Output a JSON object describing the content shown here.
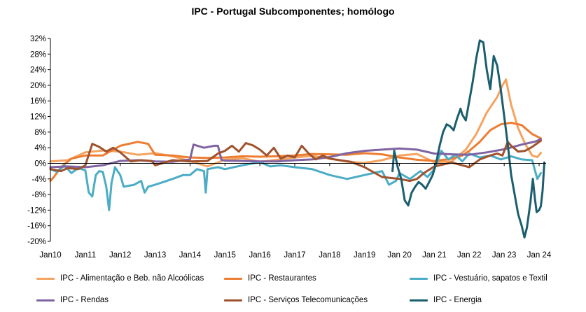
{
  "chart_data": {
    "type": "line",
    "title": "IPC - Portugal Subcomponentes; homólogo",
    "xlabel": "",
    "ylabel": "",
    "ylim": [
      -20,
      32
    ],
    "yticks": [
      "32%",
      "28%",
      "24%",
      "20%",
      "16%",
      "12%",
      "8%",
      "4%",
      "0%",
      "-4%",
      "-8%",
      "-12%",
      "-16%",
      "-20%"
    ],
    "xticks": [
      "Jan10",
      "Jan11",
      "Jan12",
      "Jan13",
      "Jan14",
      "Jan15",
      "Jan16",
      "Jan17",
      "Jan18",
      "Jan19",
      "Jan 20",
      "Jan 21",
      "Jan 22",
      "Jan 23",
      "Jan 24"
    ],
    "grid": false,
    "legend_position": "bottom",
    "series": [
      {
        "name": "IPC - Alimentação e Beb. não Alcoólicas",
        "color": "#F4A460",
        "points": [
          [
            2010,
            0.5
          ],
          [
            2010.5,
            0.8
          ],
          [
            2011,
            2.8
          ],
          [
            2011.5,
            3.3
          ],
          [
            2012,
            3.0
          ],
          [
            2012.5,
            2.2
          ],
          [
            2013,
            2.6
          ],
          [
            2013.5,
            1.8
          ],
          [
            2014,
            0.6
          ],
          [
            2014.5,
            -0.8
          ],
          [
            2015,
            0.9
          ],
          [
            2015.5,
            1.3
          ],
          [
            2016,
            0.4
          ],
          [
            2016.5,
            0.9
          ],
          [
            2017,
            1.5
          ],
          [
            2017.5,
            1.9
          ],
          [
            2018,
            1.2
          ],
          [
            2018.5,
            0.4
          ],
          [
            2019,
            0.1
          ],
          [
            2019.5,
            0.8
          ],
          [
            2020,
            2.0
          ],
          [
            2020.5,
            2.4
          ],
          [
            2021,
            0.3
          ],
          [
            2021.5,
            0.5
          ],
          [
            2021.9,
            3.5
          ],
          [
            2022.2,
            7.5
          ],
          [
            2022.5,
            13.0
          ],
          [
            2022.8,
            17.0
          ],
          [
            2022.95,
            20.0
          ],
          [
            2023.05,
            21.5
          ],
          [
            2023.2,
            15.0
          ],
          [
            2023.4,
            9.0
          ],
          [
            2023.6,
            5.0
          ],
          [
            2023.8,
            2.0
          ],
          [
            2023.95,
            1.6
          ],
          [
            2024.05,
            2.7
          ]
        ]
      },
      {
        "name": "IPC - Restaurantes",
        "color": "#ED7D31",
        "points": [
          [
            2010,
            -4.5
          ],
          [
            2010.1,
            -3.5
          ],
          [
            2010.3,
            -1.0
          ],
          [
            2010.6,
            1.2
          ],
          [
            2011,
            2.0
          ],
          [
            2011.5,
            2.0
          ],
          [
            2012,
            4.5
          ],
          [
            2012.5,
            5.5
          ],
          [
            2012.8,
            5.0
          ],
          [
            2013,
            2.2
          ],
          [
            2013.5,
            2.0
          ],
          [
            2014,
            1.5
          ],
          [
            2014.5,
            1.4
          ],
          [
            2015,
            1.5
          ],
          [
            2015.5,
            1.8
          ],
          [
            2016,
            1.7
          ],
          [
            2016.5,
            1.8
          ],
          [
            2017,
            2.0
          ],
          [
            2017.5,
            2.4
          ],
          [
            2018,
            2.3
          ],
          [
            2018.5,
            2.2
          ],
          [
            2019,
            2.6
          ],
          [
            2019.5,
            2.3
          ],
          [
            2020,
            1.5
          ],
          [
            2020.5,
            0.9
          ],
          [
            2021,
            0.6
          ],
          [
            2021.5,
            1.2
          ],
          [
            2021.8,
            2.0
          ],
          [
            2022,
            3.2
          ],
          [
            2022.3,
            5.5
          ],
          [
            2022.6,
            8.5
          ],
          [
            2022.9,
            10.0
          ],
          [
            2023.2,
            10.4
          ],
          [
            2023.5,
            9.8
          ],
          [
            2023.8,
            7.5
          ],
          [
            2024.05,
            6.4
          ]
        ]
      },
      {
        "name": "IPC - Vestuário, sapatos e Textil",
        "color": "#4BACC6",
        "points": [
          [
            2010,
            -1.5
          ],
          [
            2010.2,
            -2.2
          ],
          [
            2010.4,
            -0.5
          ],
          [
            2010.6,
            -2.5
          ],
          [
            2010.8,
            -1.2
          ],
          [
            2011,
            -1.8
          ],
          [
            2011.1,
            -7.5
          ],
          [
            2011.2,
            -8.5
          ],
          [
            2011.3,
            -3.0
          ],
          [
            2011.4,
            -2.0
          ],
          [
            2011.5,
            -2.2
          ],
          [
            2011.6,
            -6.0
          ],
          [
            2011.68,
            -12.0
          ],
          [
            2011.75,
            -5.0
          ],
          [
            2011.85,
            -1.0
          ],
          [
            2012,
            -3.0
          ],
          [
            2012.1,
            -6.0
          ],
          [
            2012.4,
            -5.5
          ],
          [
            2012.6,
            -4.5
          ],
          [
            2012.7,
            -7.5
          ],
          [
            2012.8,
            -6.0
          ],
          [
            2013,
            -5.5
          ],
          [
            2013.5,
            -4.0
          ],
          [
            2013.8,
            -3.0
          ],
          [
            2014,
            -3.0
          ],
          [
            2014.2,
            -1.5
          ],
          [
            2014.4,
            -2.0
          ],
          [
            2014.45,
            -7.5
          ],
          [
            2014.5,
            -1.5
          ],
          [
            2014.8,
            -1.0
          ],
          [
            2015,
            -1.5
          ],
          [
            2015.5,
            -0.5
          ],
          [
            2016,
            0.3
          ],
          [
            2016.3,
            -0.8
          ],
          [
            2016.6,
            -0.5
          ],
          [
            2017,
            -1.0
          ],
          [
            2017.5,
            -1.5
          ],
          [
            2018,
            -3.0
          ],
          [
            2018.5,
            -4.0
          ],
          [
            2019,
            -3.0
          ],
          [
            2019.5,
            -2.0
          ],
          [
            2019.7,
            -5.5
          ],
          [
            2019.9,
            -4.5
          ],
          [
            2020,
            -2.5
          ],
          [
            2020.3,
            -4.0
          ],
          [
            2020.6,
            -2.0
          ],
          [
            2020.8,
            -3.5
          ],
          [
            2021,
            -1.5
          ],
          [
            2021.2,
            3.2
          ],
          [
            2021.4,
            1.0
          ],
          [
            2021.6,
            2.2
          ],
          [
            2021.8,
            0.5
          ],
          [
            2022,
            2.5
          ],
          [
            2022.3,
            1.5
          ],
          [
            2022.6,
            2.0
          ],
          [
            2022.9,
            1.0
          ],
          [
            2023.2,
            1.8
          ],
          [
            2023.5,
            1.0
          ],
          [
            2023.8,
            0.8
          ],
          [
            2023.95,
            -4.0
          ],
          [
            2024.05,
            -2.5
          ]
        ]
      },
      {
        "name": "IPC - Rendas",
        "color": "#8064A2",
        "points": [
          [
            2010,
            -1.0
          ],
          [
            2010.5,
            -0.8
          ],
          [
            2011,
            -1.0
          ],
          [
            2011.5,
            -0.5
          ],
          [
            2012,
            0.6
          ],
          [
            2012.5,
            0.8
          ],
          [
            2013,
            0.5
          ],
          [
            2013.5,
            0.4
          ],
          [
            2014,
            1.0
          ],
          [
            2014.1,
            4.8
          ],
          [
            2014.4,
            4.0
          ],
          [
            2014.7,
            4.5
          ],
          [
            2014.8,
            4.5
          ],
          [
            2014.9,
            0.9
          ],
          [
            2015,
            0.7
          ],
          [
            2015.5,
            0.6
          ],
          [
            2016,
            0.5
          ],
          [
            2016.5,
            0.5
          ],
          [
            2017,
            0.8
          ],
          [
            2017.5,
            1.0
          ],
          [
            2018,
            1.6
          ],
          [
            2018.5,
            2.6
          ],
          [
            2019,
            3.2
          ],
          [
            2019.5,
            3.5
          ],
          [
            2020,
            3.8
          ],
          [
            2020.5,
            3.5
          ],
          [
            2021,
            2.5
          ],
          [
            2021.5,
            2.3
          ],
          [
            2022,
            2.2
          ],
          [
            2022.5,
            2.8
          ],
          [
            2023,
            3.6
          ],
          [
            2023.5,
            4.8
          ],
          [
            2023.9,
            5.6
          ],
          [
            2024.05,
            6.2
          ]
        ]
      },
      {
        "name": "IPC - Serviços Telecomunicações",
        "color": "#A0522D",
        "points": [
          [
            2010,
            -1.5
          ],
          [
            2010.3,
            -2.0
          ],
          [
            2010.5,
            -1.2
          ],
          [
            2010.8,
            -1.5
          ],
          [
            2011,
            -0.5
          ],
          [
            2011.2,
            5.0
          ],
          [
            2011.4,
            4.2
          ],
          [
            2011.6,
            3.0
          ],
          [
            2011.8,
            4.0
          ],
          [
            2012,
            2.8
          ],
          [
            2012.3,
            0.5
          ],
          [
            2012.6,
            0.8
          ],
          [
            2012.9,
            0.6
          ],
          [
            2013,
            -0.5
          ],
          [
            2013.5,
            0.8
          ],
          [
            2014,
            0.5
          ],
          [
            2014.5,
            0.6
          ],
          [
            2014.8,
            2.5
          ],
          [
            2015,
            3.2
          ],
          [
            2015.2,
            4.5
          ],
          [
            2015.4,
            3.0
          ],
          [
            2015.6,
            5.2
          ],
          [
            2015.8,
            4.6
          ],
          [
            2016,
            3.5
          ],
          [
            2016.2,
            2.0
          ],
          [
            2016.4,
            4.0
          ],
          [
            2016.6,
            1.2
          ],
          [
            2016.8,
            2.0
          ],
          [
            2017,
            1.5
          ],
          [
            2017.2,
            4.5
          ],
          [
            2017.4,
            2.5
          ],
          [
            2017.6,
            1.0
          ],
          [
            2017.8,
            2.0
          ],
          [
            2018,
            1.2
          ],
          [
            2018.3,
            0.8
          ],
          [
            2018.6,
            0.4
          ],
          [
            2019,
            -1.0
          ],
          [
            2019.5,
            -3.5
          ],
          [
            2020,
            -4.0
          ],
          [
            2020.3,
            -4.5
          ],
          [
            2020.5,
            -4.0
          ],
          [
            2020.7,
            -2.5
          ],
          [
            2021,
            -0.8
          ],
          [
            2021.5,
            0.2
          ],
          [
            2021.8,
            -0.5
          ],
          [
            2022,
            -1.0
          ],
          [
            2022.3,
            1.0
          ],
          [
            2022.6,
            2.0
          ],
          [
            2022.8,
            2.5
          ],
          [
            2022.95,
            2.0
          ],
          [
            2023.1,
            5.5
          ],
          [
            2023.2,
            4.5
          ],
          [
            2023.4,
            3.0
          ],
          [
            2023.6,
            3.2
          ],
          [
            2023.8,
            4.2
          ],
          [
            2024.05,
            5.8
          ]
        ]
      },
      {
        "name": "IPC - Energia",
        "color": "#1B5E6E",
        "points": [
          [
            2019.8,
            -2.0
          ],
          [
            2019.85,
            3.2
          ],
          [
            2019.95,
            -1.0
          ],
          [
            2020.05,
            -4.0
          ],
          [
            2020.15,
            -9.5
          ],
          [
            2020.25,
            -10.8
          ],
          [
            2020.35,
            -7.5
          ],
          [
            2020.45,
            -6.0
          ],
          [
            2020.55,
            -4.8
          ],
          [
            2020.65,
            -5.5
          ],
          [
            2020.75,
            -6.5
          ],
          [
            2020.85,
            -4.8
          ],
          [
            2020.95,
            -3.0
          ],
          [
            2021.05,
            0.0
          ],
          [
            2021.15,
            4.5
          ],
          [
            2021.25,
            8.0
          ],
          [
            2021.35,
            10.0
          ],
          [
            2021.45,
            9.5
          ],
          [
            2021.55,
            8.5
          ],
          [
            2021.65,
            11.5
          ],
          [
            2021.75,
            14.0
          ],
          [
            2021.8,
            12.5
          ],
          [
            2021.9,
            11.0
          ],
          [
            2022.0,
            16.0
          ],
          [
            2022.1,
            21.0
          ],
          [
            2022.2,
            27.0
          ],
          [
            2022.3,
            31.5
          ],
          [
            2022.4,
            31.0
          ],
          [
            2022.5,
            24.0
          ],
          [
            2022.6,
            19.0
          ],
          [
            2022.7,
            27.5
          ],
          [
            2022.8,
            25.0
          ],
          [
            2022.9,
            19.0
          ],
          [
            2023.0,
            12.0
          ],
          [
            2023.1,
            5.0
          ],
          [
            2023.2,
            -3.0
          ],
          [
            2023.3,
            -8.0
          ],
          [
            2023.4,
            -13.0
          ],
          [
            2023.5,
            -16.0
          ],
          [
            2023.58,
            -19.0
          ],
          [
            2023.65,
            -16.5
          ],
          [
            2023.75,
            -10.0
          ],
          [
            2023.82,
            -4.0
          ],
          [
            2023.88,
            -9.0
          ],
          [
            2023.93,
            -12.5
          ],
          [
            2024.0,
            -12.0
          ],
          [
            2024.05,
            -11.0
          ],
          [
            2024.1,
            -7.0
          ],
          [
            2024.15,
            0.2
          ]
        ]
      }
    ]
  }
}
